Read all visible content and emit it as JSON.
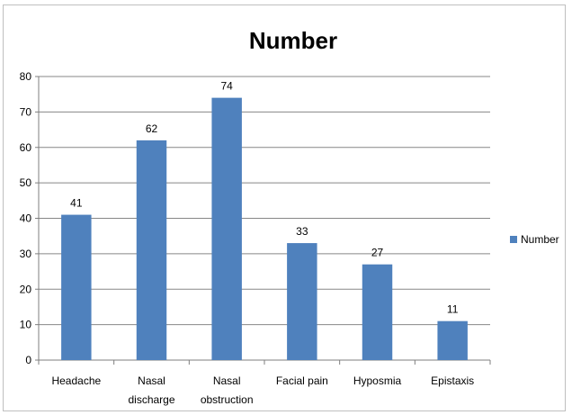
{
  "chart_data": {
    "type": "bar",
    "title": "Number",
    "categories": [
      "Headache",
      "Nasal discharge",
      "Nasal obstruction",
      "Facial pain",
      "Hyposmia",
      "Epistaxis"
    ],
    "category_lines": [
      [
        "Headache"
      ],
      [
        "Nasal",
        "discharge"
      ],
      [
        "Nasal",
        "obstruction"
      ],
      [
        "Facial pain"
      ],
      [
        "Hyposmia"
      ],
      [
        "Epistaxis"
      ]
    ],
    "series": [
      {
        "name": "Number",
        "values": [
          41,
          62,
          74,
          33,
          27,
          11
        ],
        "color": "#4f81bd"
      }
    ],
    "ylim": [
      0,
      80
    ],
    "yticks": [
      0,
      10,
      20,
      30,
      40,
      50,
      60,
      70,
      80
    ],
    "xlabel": "",
    "ylabel": "",
    "grid": true,
    "legend_position": "right",
    "data_labels": true
  }
}
